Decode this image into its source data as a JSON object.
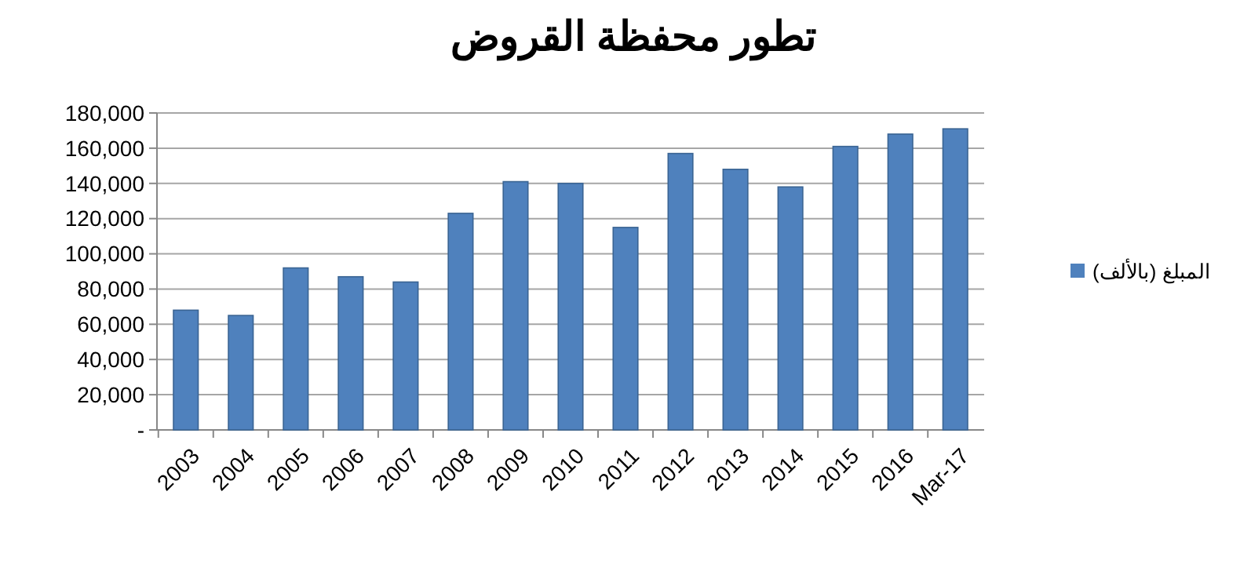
{
  "chart_data": {
    "type": "bar",
    "title": "تطور محفظة القروض",
    "categories": [
      "2003",
      "2004",
      "2005",
      "2006",
      "2007",
      "2008",
      "2009",
      "2010",
      "2011",
      "2012",
      "2013",
      "2014",
      "2015",
      "2016",
      "Mar-17"
    ],
    "series": [
      {
        "name": "المبلغ (بالألف)",
        "color": "#4f81bd",
        "values": [
          68000,
          65000,
          92000,
          87000,
          84000,
          123000,
          141000,
          140000,
          115000,
          157000,
          148000,
          138000,
          161000,
          168000,
          171000
        ]
      }
    ],
    "ylim": [
      0,
      180000
    ],
    "yticks": [
      {
        "value": 0,
        "label": "-"
      },
      {
        "value": 20000,
        "label": "20,000"
      },
      {
        "value": 40000,
        "label": "40,000"
      },
      {
        "value": 60000,
        "label": "60,000"
      },
      {
        "value": 80000,
        "label": "80,000"
      },
      {
        "value": 100000,
        "label": "100,000"
      },
      {
        "value": 120000,
        "label": "120,000"
      },
      {
        "value": 140000,
        "label": "140,000"
      },
      {
        "value": 160000,
        "label": "160,000"
      },
      {
        "value": 180000,
        "label": "180,000"
      }
    ],
    "grid": "y",
    "legend": "right"
  }
}
